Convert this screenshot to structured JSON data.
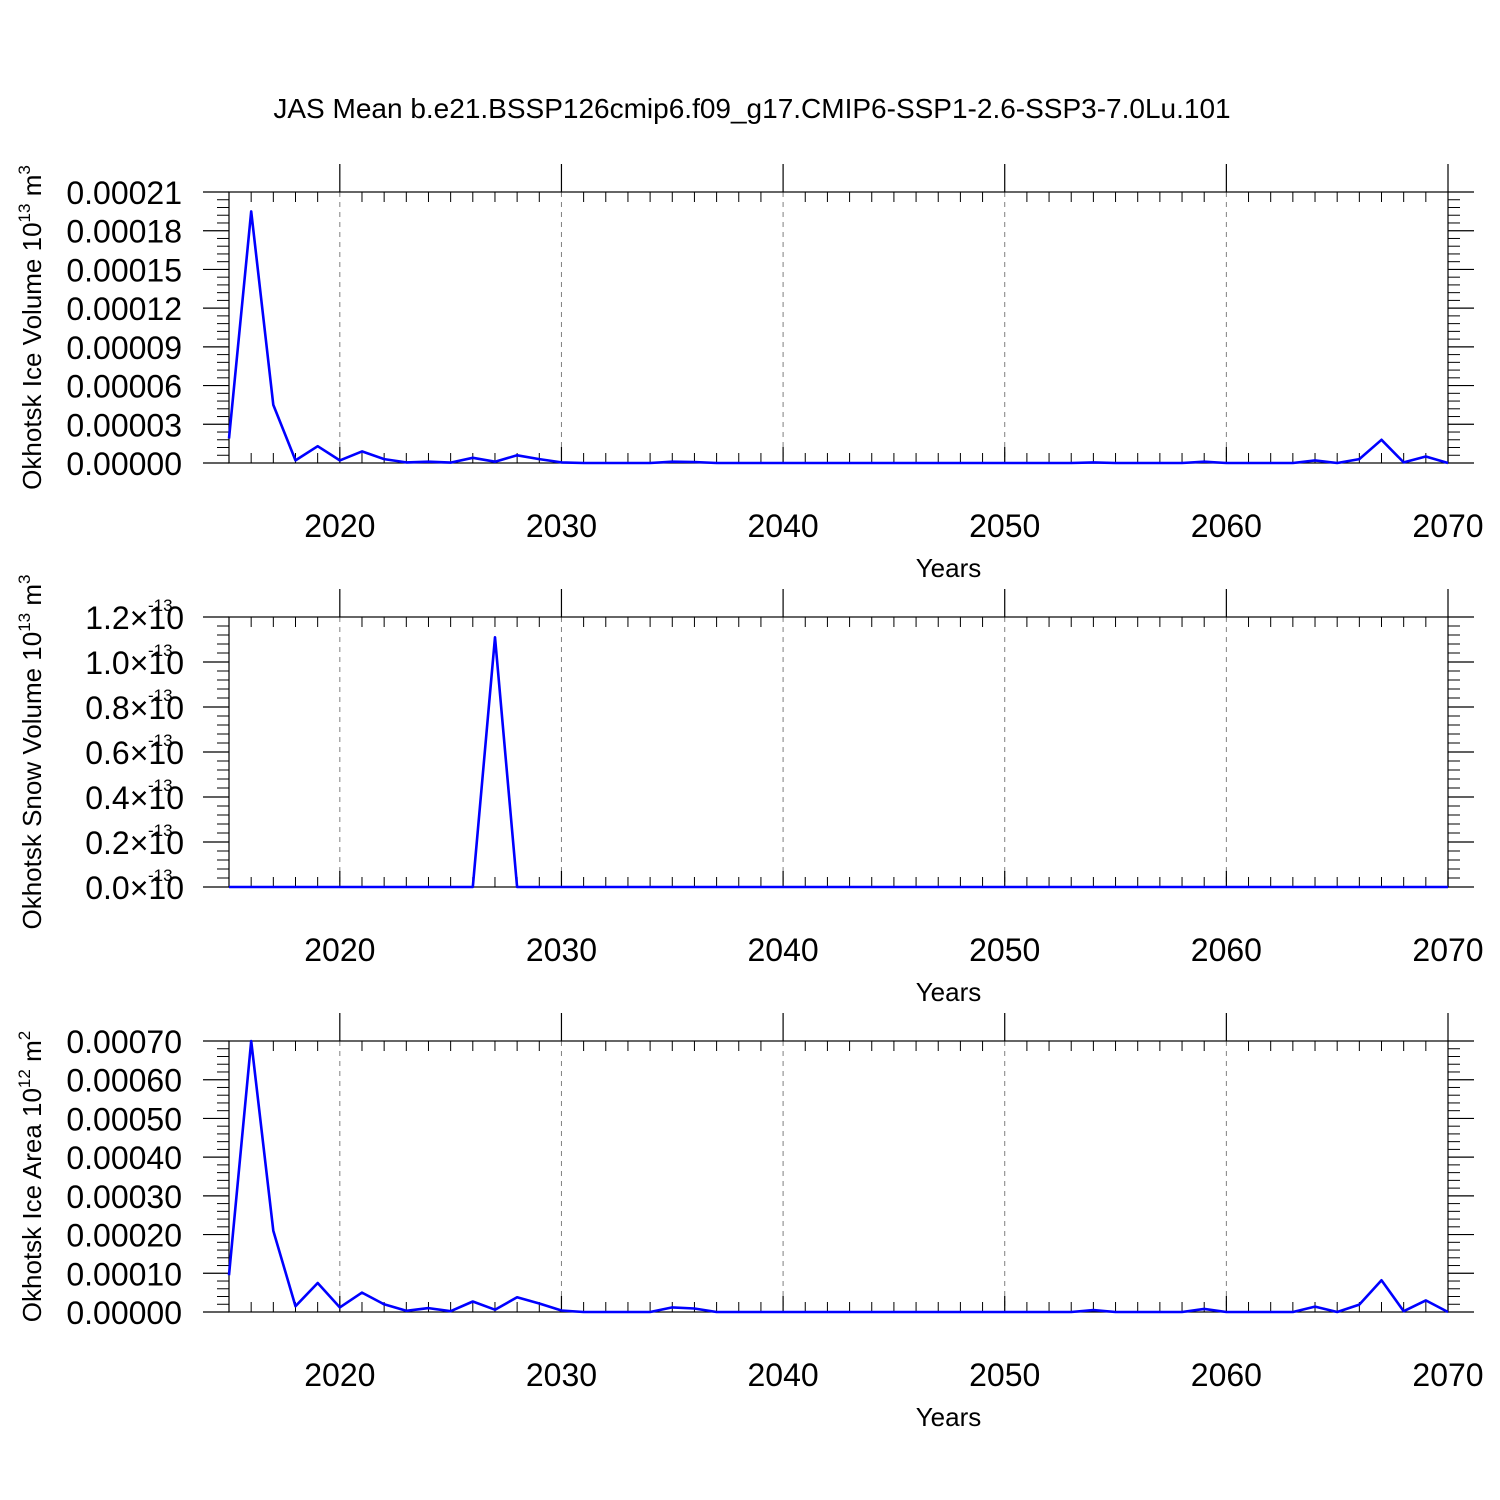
{
  "title": "JAS Mean b.e21.BSSP126cmip6.f09_g17.CMIP6-SSP1-2.6-SSP3-7.0Lu.101",
  "colors": {
    "series": "#0000ff",
    "axis": "#000000",
    "grid": "#808080"
  },
  "chart_data": [
    {
      "type": "line",
      "xlabel": "Years",
      "ylabel": {
        "text": "Okhotsk Ice Volume 10",
        "exp": "13",
        "unit": " m",
        "unit_exp": "3"
      },
      "xlim": [
        2015,
        2070
      ],
      "ylim": [
        0,
        0.00021
      ],
      "xticks": [
        2020,
        2030,
        2040,
        2050,
        2060,
        2070
      ],
      "xtick_labels": [
        "2020",
        "2030",
        "2040",
        "2050",
        "2060",
        "2070"
      ],
      "yticks": [
        0,
        3e-05,
        6e-05,
        9e-05,
        0.00012,
        0.00015,
        0.00018,
        0.00021
      ],
      "ytick_labels": [
        "0.00000",
        "0.00003",
        "0.00006",
        "0.00009",
        "0.00012",
        "0.00015",
        "0.00018",
        "0.00021"
      ],
      "grid": "vertical dashed",
      "x": [
        2015,
        2016,
        2017,
        2018,
        2019,
        2020,
        2021,
        2022,
        2023,
        2024,
        2025,
        2026,
        2027,
        2028,
        2029,
        2030,
        2031,
        2032,
        2033,
        2034,
        2035,
        2036,
        2037,
        2038,
        2039,
        2040,
        2041,
        2042,
        2043,
        2044,
        2045,
        2046,
        2047,
        2048,
        2049,
        2050,
        2051,
        2052,
        2053,
        2054,
        2055,
        2056,
        2057,
        2058,
        2059,
        2060,
        2061,
        2062,
        2063,
        2064,
        2065,
        2066,
        2067,
        2068,
        2069,
        2070
      ],
      "series": [
        {
          "values": [
            1.9e-05,
            0.000195,
            4.5e-05,
            2e-06,
            1.3e-05,
            2e-06,
            9e-06,
            3e-06,
            5e-07,
            1e-06,
            3e-07,
            4e-06,
            1e-06,
            6e-06,
            3e-06,
            5e-07,
            0,
            0,
            0,
            0,
            1e-06,
            8e-07,
            0,
            0,
            0,
            0,
            0,
            0,
            0,
            0,
            0,
            0,
            0,
            0,
            0,
            0,
            0,
            0,
            0,
            5e-07,
            0,
            0,
            0,
            0,
            1e-06,
            0,
            0,
            0,
            0,
            2e-06,
            0,
            3e-06,
            1.8e-05,
            5e-07,
            5e-06,
            0
          ]
        }
      ]
    },
    {
      "type": "line",
      "xlabel": "Years",
      "ylabel": {
        "text": "Okhotsk Snow Volume 10",
        "exp": "13",
        "unit": " m",
        "unit_exp": "3"
      },
      "xlim": [
        2015,
        2070
      ],
      "ylim": [
        0,
        1.2e-13
      ],
      "xticks": [
        2020,
        2030,
        2040,
        2050,
        2060,
        2070
      ],
      "xtick_labels": [
        "2020",
        "2030",
        "2040",
        "2050",
        "2060",
        "2070"
      ],
      "yticks": [
        0,
        2e-14,
        4e-14,
        6e-14,
        8e-14,
        1e-13,
        1.2e-13
      ],
      "ytick_labels": [
        "0.0",
        "0.2",
        "0.4",
        "0.6",
        "0.8",
        "1.0",
        "1.2"
      ],
      "ytick_multiplier": "10",
      "ytick_exponent": "-13",
      "grid": "vertical dashed",
      "x": [
        2015,
        2016,
        2017,
        2018,
        2019,
        2020,
        2021,
        2022,
        2023,
        2024,
        2025,
        2026,
        2027,
        2028,
        2029,
        2030,
        2031,
        2032,
        2033,
        2034,
        2035,
        2036,
        2037,
        2038,
        2039,
        2040,
        2041,
        2042,
        2043,
        2044,
        2045,
        2046,
        2047,
        2048,
        2049,
        2050,
        2051,
        2052,
        2053,
        2054,
        2055,
        2056,
        2057,
        2058,
        2059,
        2060,
        2061,
        2062,
        2063,
        2064,
        2065,
        2066,
        2067,
        2068,
        2069,
        2070
      ],
      "series": [
        {
          "values": [
            0,
            0,
            0,
            0,
            0,
            0,
            0,
            0,
            0,
            0,
            0,
            0,
            1.11e-13,
            0,
            0,
            0,
            0,
            0,
            0,
            0,
            0,
            0,
            0,
            0,
            0,
            0,
            0,
            0,
            0,
            0,
            0,
            0,
            0,
            0,
            0,
            0,
            0,
            0,
            0,
            0,
            0,
            0,
            0,
            0,
            0,
            0,
            0,
            0,
            0,
            0,
            0,
            0,
            0,
            0,
            0,
            0
          ]
        }
      ]
    },
    {
      "type": "line",
      "xlabel": "Years",
      "ylabel": {
        "text": "Okhotsk Ice Area 10",
        "exp": "12",
        "unit": " m",
        "unit_exp": "2"
      },
      "xlim": [
        2015,
        2070
      ],
      "ylim": [
        0,
        0.0007
      ],
      "xticks": [
        2020,
        2030,
        2040,
        2050,
        2060,
        2070
      ],
      "xtick_labels": [
        "2020",
        "2030",
        "2040",
        "2050",
        "2060",
        "2070"
      ],
      "yticks": [
        0,
        0.0001,
        0.0002,
        0.0003,
        0.0004,
        0.0005,
        0.0006,
        0.0007
      ],
      "ytick_labels": [
        "0.00000",
        "0.00010",
        "0.00020",
        "0.00030",
        "0.00040",
        "0.00050",
        "0.00060",
        "0.00070"
      ],
      "grid": "vertical dashed",
      "x": [
        2015,
        2016,
        2017,
        2018,
        2019,
        2020,
        2021,
        2022,
        2023,
        2024,
        2025,
        2026,
        2027,
        2028,
        2029,
        2030,
        2031,
        2032,
        2033,
        2034,
        2035,
        2036,
        2037,
        2038,
        2039,
        2040,
        2041,
        2042,
        2043,
        2044,
        2045,
        2046,
        2047,
        2048,
        2049,
        2050,
        2051,
        2052,
        2053,
        2054,
        2055,
        2056,
        2057,
        2058,
        2059,
        2060,
        2061,
        2062,
        2063,
        2064,
        2065,
        2066,
        2067,
        2068,
        2069,
        2070
      ],
      "series": [
        {
          "values": [
            9.5e-05,
            0.0007,
            0.00021,
            1.5e-05,
            7.5e-05,
            1.2e-05,
            5e-05,
            2e-05,
            3e-06,
            1e-05,
            2e-06,
            2.7e-05,
            6e-06,
            3.8e-05,
            2.2e-05,
            4e-06,
            0,
            0,
            0,
            0,
            1.2e-05,
            9e-06,
            0,
            0,
            0,
            0,
            0,
            0,
            0,
            0,
            0,
            0,
            0,
            0,
            0,
            0,
            0,
            0,
            0,
            5e-06,
            0,
            0,
            0,
            0,
            8e-06,
            0,
            0,
            0,
            0,
            1.4e-05,
            0,
            1.9e-05,
            8.2e-05,
            2e-06,
            3e-05,
            0
          ]
        }
      ]
    }
  ]
}
